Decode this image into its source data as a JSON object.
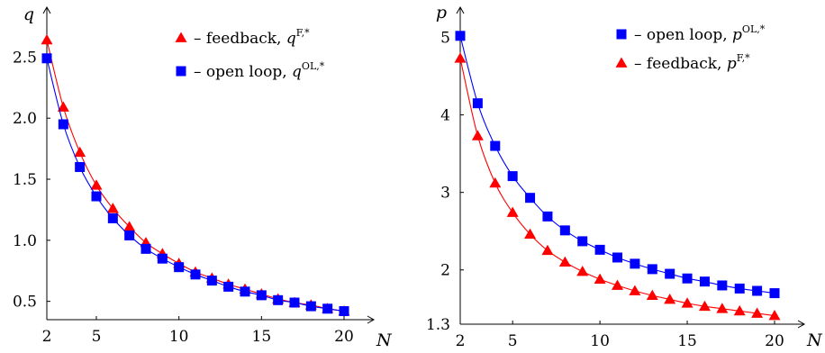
{
  "chart_data": [
    {
      "type": "line",
      "xlabel": "N",
      "ylabel": "q",
      "xlim": [
        2,
        20
      ],
      "ylim": [
        0.35,
        2.82
      ],
      "xticks": [
        "2",
        "5",
        "10",
        "15",
        "20"
      ],
      "yticks": [
        "0.5",
        "1.0",
        "1.5",
        "2.0",
        "2.5"
      ],
      "legend_position": "top-right",
      "x": [
        2,
        3,
        4,
        5,
        6,
        7,
        8,
        9,
        10,
        11,
        12,
        13,
        14,
        15,
        16,
        17,
        18,
        19,
        20
      ],
      "series": [
        {
          "name": "feedback, q",
          "name_sup": "F,*",
          "color": "#ff0000",
          "marker": "triangle",
          "values": [
            2.64,
            2.09,
            1.72,
            1.45,
            1.26,
            1.11,
            0.98,
            0.89,
            0.81,
            0.74,
            0.69,
            0.64,
            0.6,
            0.56,
            0.52,
            0.49,
            0.47,
            0.44,
            0.42
          ]
        },
        {
          "name": "open loop, q",
          "name_sup": "OL,*",
          "color": "#0000ff",
          "marker": "square",
          "values": [
            2.49,
            1.95,
            1.6,
            1.36,
            1.18,
            1.04,
            0.93,
            0.85,
            0.78,
            0.72,
            0.67,
            0.62,
            0.58,
            0.55,
            0.51,
            0.49,
            0.46,
            0.44,
            0.42
          ]
        }
      ]
    },
    {
      "type": "line",
      "xlabel": "N",
      "ylabel": "p",
      "xlim": [
        2,
        20
      ],
      "ylim": [
        1.3,
        5.25
      ],
      "xticks": [
        "2",
        "5",
        "10",
        "15",
        "20"
      ],
      "yticks": [
        "1.3",
        "2",
        "3",
        "4",
        "5"
      ],
      "legend_position": "top-right",
      "x": [
        2,
        3,
        4,
        5,
        6,
        7,
        8,
        9,
        10,
        11,
        12,
        13,
        14,
        15,
        16,
        17,
        18,
        19,
        20
      ],
      "series": [
        {
          "name": "open loop, p",
          "name_sup": "OL,*",
          "color": "#0000ff",
          "marker": "square",
          "values": [
            5.02,
            4.15,
            3.6,
            3.21,
            2.93,
            2.69,
            2.51,
            2.37,
            2.26,
            2.16,
            2.08,
            2.01,
            1.95,
            1.89,
            1.85,
            1.8,
            1.76,
            1.73,
            1.7
          ]
        },
        {
          "name": "feedback, p",
          "name_sup": "F,*",
          "color": "#ff0000",
          "marker": "triangle",
          "values": [
            4.73,
            3.73,
            3.12,
            2.74,
            2.46,
            2.25,
            2.1,
            1.98,
            1.88,
            1.8,
            1.73,
            1.67,
            1.62,
            1.57,
            1.53,
            1.5,
            1.47,
            1.44,
            1.41
          ]
        }
      ]
    }
  ],
  "legend_dash": "–"
}
